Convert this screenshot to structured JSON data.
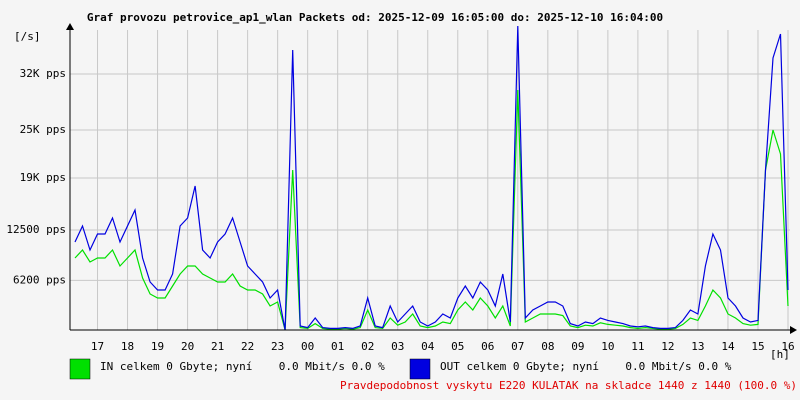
{
  "chart_data": {
    "type": "line",
    "title": "Graf provozu petrovice_ap1_wlan Packets od: 2025-12-09 16:05:00 do: 2025-12-10 16:04:00",
    "y_label": "[/s]",
    "x_label": "[h]",
    "note": "Pravdepodobnost vyskytu E220 KULATAK na skladce 1440 z 1440 (100.0 %)",
    "xlim": [
      16.0833,
      40.0667
    ],
    "xticks": [
      17,
      18,
      19,
      20,
      21,
      22,
      23,
      {
        "value": 24,
        "label": "00"
      },
      {
        "value": 25,
        "label": "01"
      },
      {
        "value": 26,
        "label": "02"
      },
      {
        "value": 27,
        "label": "03"
      },
      {
        "value": 28,
        "label": "04"
      },
      {
        "value": 29,
        "label": "05"
      },
      {
        "value": 30,
        "label": "06"
      },
      {
        "value": 31,
        "label": "07"
      },
      {
        "value": 32,
        "label": "08"
      },
      {
        "value": 33,
        "label": "09"
      },
      {
        "value": 34,
        "label": "10"
      },
      {
        "value": 35,
        "label": "11"
      },
      {
        "value": 36,
        "label": "12"
      },
      {
        "value": 37,
        "label": "13"
      },
      {
        "value": 38,
        "label": "14"
      },
      {
        "value": 39,
        "label": "15"
      },
      {
        "value": 40,
        "label": "16"
      }
    ],
    "ylim": [
      0,
      37500
    ],
    "yticks": [
      {
        "value": 6200,
        "label": "6200 pps"
      },
      {
        "value": 12500,
        "label": "12500 pps"
      },
      {
        "value": 19000,
        "label": "19K pps"
      },
      {
        "value": 25000,
        "label": "25K pps"
      },
      {
        "value": 32000,
        "label": "32K pps"
      }
    ],
    "grid": true,
    "x": [
      16.25,
      16.5,
      16.75,
      17,
      17.25,
      17.5,
      17.75,
      18,
      18.25,
      18.5,
      18.75,
      19,
      19.25,
      19.5,
      19.75,
      20,
      20.25,
      20.5,
      20.75,
      21,
      21.25,
      21.5,
      21.75,
      22,
      22.25,
      22.5,
      22.75,
      23,
      23.25,
      23.5,
      23.75,
      24,
      24.25,
      24.5,
      24.75,
      25,
      25.25,
      25.5,
      25.75,
      26,
      26.25,
      26.5,
      26.75,
      27,
      27.25,
      27.5,
      27.75,
      28,
      28.25,
      28.5,
      28.75,
      29,
      29.25,
      29.5,
      29.75,
      30,
      30.25,
      30.5,
      30.75,
      31,
      31.25,
      31.5,
      31.75,
      32,
      32.25,
      32.5,
      32.75,
      33,
      33.25,
      33.5,
      33.75,
      34,
      34.25,
      34.5,
      34.75,
      35,
      35.25,
      35.5,
      35.75,
      36,
      36.25,
      36.5,
      36.75,
      37,
      37.25,
      37.5,
      37.75,
      38,
      38.25,
      38.5,
      38.75,
      39,
      39.25,
      39.5,
      39.75,
      40
    ],
    "series": [
      {
        "name": "IN celkem 0 Gbyte; nyní    0.0 Mbit/s 0.0 %",
        "color": "#00e000",
        "values": [
          9000,
          10000,
          8500,
          9000,
          9000,
          10000,
          8000,
          9000,
          10000,
          6500,
          4500,
          4000,
          4000,
          5500,
          7000,
          8000,
          8000,
          7000,
          6500,
          6000,
          6000,
          7000,
          5500,
          5000,
          5000,
          4500,
          3000,
          3500,
          0,
          20000,
          300,
          200,
          800,
          200,
          100,
          100,
          200,
          100,
          300,
          2500,
          300,
          200,
          1500,
          600,
          1000,
          2000,
          500,
          300,
          500,
          1000,
          800,
          2500,
          3500,
          2500,
          4000,
          3000,
          1500,
          3000,
          500,
          30000,
          1000,
          1500,
          2000,
          2000,
          2000,
          1800,
          500,
          300,
          600,
          500,
          900,
          700,
          600,
          500,
          300,
          200,
          300,
          200,
          100,
          100,
          200,
          700,
          1500,
          1200,
          3000,
          5000,
          4000,
          2000,
          1500,
          800,
          600,
          700,
          20000,
          25000,
          22000,
          3000
        ]
      },
      {
        "name": "OUT celkem 0 Gbyte; nyní    0.0 Mbit/s 0.0 %",
        "color": "#0000e0",
        "values": [
          11000,
          13000,
          10000,
          12000,
          12000,
          14000,
          11000,
          13000,
          15000,
          9000,
          6000,
          5000,
          5000,
          7000,
          13000,
          14000,
          18000,
          10000,
          9000,
          11000,
          12000,
          14000,
          11000,
          8000,
          7000,
          6000,
          4000,
          5000,
          0,
          35000,
          500,
          300,
          1500,
          300,
          200,
          200,
          300,
          200,
          500,
          4000,
          500,
          300,
          3000,
          1000,
          2000,
          3000,
          1000,
          500,
          1000,
          2000,
          1500,
          4000,
          5500,
          4000,
          6000,
          5000,
          3000,
          7000,
          1000,
          38000,
          1500,
          2500,
          3000,
          3500,
          3500,
          3000,
          800,
          500,
          1000,
          800,
          1500,
          1200,
          1000,
          800,
          500,
          400,
          500,
          300,
          200,
          200,
          300,
          1200,
          2500,
          2000,
          8000,
          12000,
          10000,
          4000,
          3000,
          1500,
          1000,
          1200,
          20000,
          34000,
          37000,
          5000
        ]
      }
    ]
  }
}
